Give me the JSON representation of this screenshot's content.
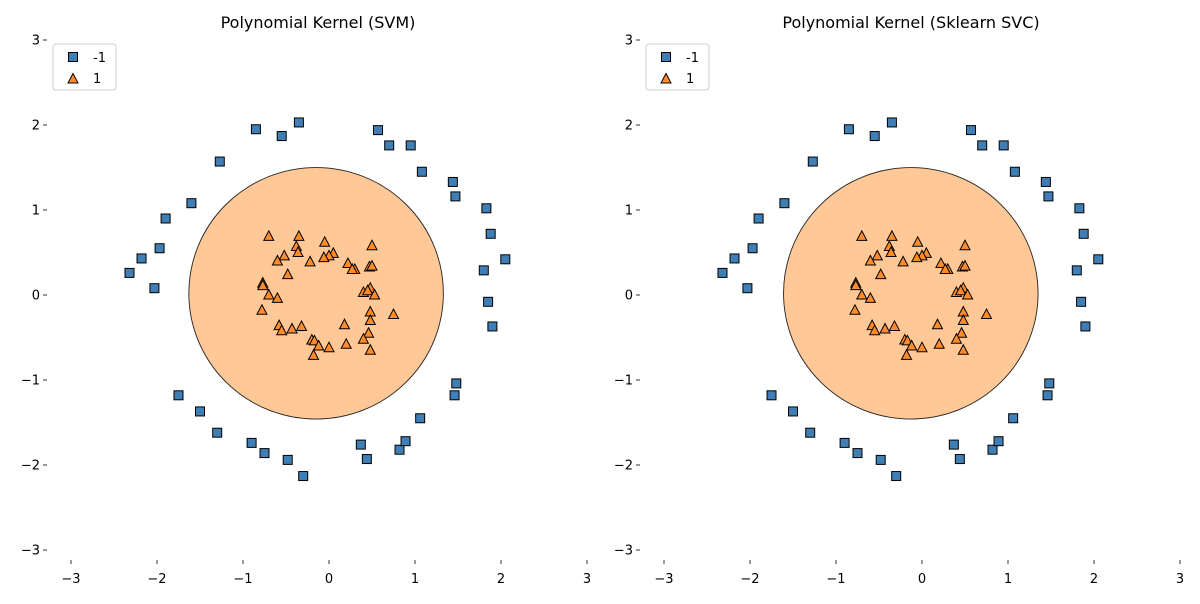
{
  "colors": {
    "class_neg": "#3f7fb5",
    "class_pos": "#ff8c2b",
    "region_pos": "#ffc896",
    "marker_edge": "#000000",
    "legend_border": "#cccccc"
  },
  "legend": {
    "entries": [
      {
        "label": "-1",
        "marker": "square"
      },
      {
        "label": "1",
        "marker": "triangle"
      }
    ],
    "location": "upper-left"
  },
  "chart_data": [
    {
      "type": "scatter",
      "title": "Polynomial Kernel (SVM)",
      "xlim": [
        -3,
        3
      ],
      "ylim": [
        -3,
        3
      ],
      "xticks": [
        "−3",
        "−2",
        "−1",
        "0",
        "1",
        "2",
        "3"
      ],
      "yticks": [
        "−3",
        "−2",
        "−1",
        "0",
        "1",
        "2",
        "3"
      ],
      "grid": false,
      "decision_region": {
        "class": "1",
        "center": [
          -0.15,
          0.02
        ],
        "rx": 1.48,
        "ry_top": 1.48,
        "ry_bottom": 1.48
      },
      "series": [
        {
          "name": "-1",
          "marker": "square",
          "points": [
            [
              -0.85,
              1.95
            ],
            [
              -0.55,
              1.87
            ],
            [
              -0.35,
              2.03
            ],
            [
              0.57,
              1.94
            ],
            [
              0.7,
              1.76
            ],
            [
              0.95,
              1.76
            ],
            [
              1.08,
              1.45
            ],
            [
              1.44,
              1.33
            ],
            [
              1.47,
              1.16
            ],
            [
              -1.27,
              1.57
            ],
            [
              -1.6,
              1.08
            ],
            [
              -1.9,
              0.9
            ],
            [
              -1.97,
              0.55
            ],
            [
              -2.18,
              0.43
            ],
            [
              -2.32,
              0.26
            ],
            [
              -2.03,
              0.08
            ],
            [
              1.83,
              1.02
            ],
            [
              1.88,
              0.72
            ],
            [
              2.05,
              0.42
            ],
            [
              1.8,
              0.29
            ],
            [
              1.85,
              -0.08
            ],
            [
              1.9,
              -0.37
            ],
            [
              -1.75,
              -1.18
            ],
            [
              -1.5,
              -1.37
            ],
            [
              -1.3,
              -1.62
            ],
            [
              -0.9,
              -1.74
            ],
            [
              -0.75,
              -1.86
            ],
            [
              -0.48,
              -1.94
            ],
            [
              -0.3,
              -2.13
            ],
            [
              0.37,
              -1.76
            ],
            [
              0.44,
              -1.93
            ],
            [
              0.82,
              -1.82
            ],
            [
              0.89,
              -1.72
            ],
            [
              1.06,
              -1.45
            ],
            [
              1.46,
              -1.18
            ],
            [
              1.48,
              -1.04
            ]
          ]
        },
        {
          "name": "1",
          "marker": "triangle",
          "points": [
            [
              -0.7,
              0.69
            ],
            [
              -0.35,
              0.69
            ],
            [
              -0.05,
              0.62
            ],
            [
              -0.38,
              0.57
            ],
            [
              -0.36,
              0.5
            ],
            [
              0.05,
              0.49
            ],
            [
              -0.52,
              0.46
            ],
            [
              0.0,
              0.46
            ],
            [
              -0.06,
              0.44
            ],
            [
              -0.6,
              0.4
            ],
            [
              -0.22,
              0.39
            ],
            [
              0.5,
              0.58
            ],
            [
              0.22,
              0.37
            ],
            [
              0.3,
              0.3
            ],
            [
              0.27,
              0.3
            ],
            [
              0.47,
              0.33
            ],
            [
              0.5,
              0.34
            ],
            [
              -0.48,
              0.24
            ],
            [
              -0.77,
              0.14
            ],
            [
              -0.77,
              0.11
            ],
            [
              0.4,
              0.03
            ],
            [
              0.48,
              0.08
            ],
            [
              0.45,
              0.05
            ],
            [
              0.53,
              0.0
            ],
            [
              -0.7,
              0.0
            ],
            [
              -0.6,
              -0.04
            ],
            [
              -0.78,
              -0.18
            ],
            [
              0.48,
              -0.2
            ],
            [
              0.75,
              -0.23
            ],
            [
              0.48,
              -0.3
            ],
            [
              0.18,
              -0.35
            ],
            [
              -0.58,
              -0.36
            ],
            [
              -0.32,
              -0.37
            ],
            [
              -0.43,
              -0.4
            ],
            [
              -0.55,
              -0.42
            ],
            [
              0.46,
              -0.45
            ],
            [
              -0.2,
              -0.53
            ],
            [
              -0.17,
              -0.54
            ],
            [
              0.4,
              -0.52
            ],
            [
              0.2,
              -0.58
            ],
            [
              -0.12,
              -0.6
            ],
            [
              0.0,
              -0.62
            ],
            [
              0.48,
              -0.65
            ],
            [
              -0.18,
              -0.71
            ]
          ]
        }
      ]
    },
    {
      "type": "scatter",
      "title": "Polynomial Kernel (Sklearn SVC)",
      "xlim": [
        -3,
        3
      ],
      "ylim": [
        -3,
        3
      ],
      "xticks": [
        "−3",
        "−2",
        "−1",
        "0",
        "1",
        "2",
        "3"
      ],
      "yticks": [
        "−3",
        "−2",
        "−1",
        "0",
        "1",
        "2",
        "3"
      ],
      "grid": false,
      "decision_region": {
        "class": "1",
        "center": [
          -0.13,
          0.02
        ],
        "rx": 1.48,
        "ry_top": 1.48,
        "ry_bottom": 1.48
      },
      "series": [
        {
          "name": "-1",
          "marker": "square",
          "points": [
            [
              -0.85,
              1.95
            ],
            [
              -0.55,
              1.87
            ],
            [
              -0.35,
              2.03
            ],
            [
              0.57,
              1.94
            ],
            [
              0.7,
              1.76
            ],
            [
              0.95,
              1.76
            ],
            [
              1.08,
              1.45
            ],
            [
              1.44,
              1.33
            ],
            [
              1.47,
              1.16
            ],
            [
              -1.27,
              1.57
            ],
            [
              -1.6,
              1.08
            ],
            [
              -1.9,
              0.9
            ],
            [
              -1.97,
              0.55
            ],
            [
              -2.18,
              0.43
            ],
            [
              -2.32,
              0.26
            ],
            [
              -2.03,
              0.08
            ],
            [
              1.83,
              1.02
            ],
            [
              1.88,
              0.72
            ],
            [
              2.05,
              0.42
            ],
            [
              1.8,
              0.29
            ],
            [
              1.85,
              -0.08
            ],
            [
              1.9,
              -0.37
            ],
            [
              -1.75,
              -1.18
            ],
            [
              -1.5,
              -1.37
            ],
            [
              -1.3,
              -1.62
            ],
            [
              -0.9,
              -1.74
            ],
            [
              -0.75,
              -1.86
            ],
            [
              -0.48,
              -1.94
            ],
            [
              -0.3,
              -2.13
            ],
            [
              0.37,
              -1.76
            ],
            [
              0.44,
              -1.93
            ],
            [
              0.82,
              -1.82
            ],
            [
              0.89,
              -1.72
            ],
            [
              1.06,
              -1.45
            ],
            [
              1.46,
              -1.18
            ],
            [
              1.48,
              -1.04
            ]
          ]
        },
        {
          "name": "1",
          "marker": "triangle",
          "points": [
            [
              -0.7,
              0.69
            ],
            [
              -0.35,
              0.69
            ],
            [
              -0.05,
              0.62
            ],
            [
              -0.38,
              0.57
            ],
            [
              -0.36,
              0.5
            ],
            [
              0.05,
              0.49
            ],
            [
              -0.52,
              0.46
            ],
            [
              0.0,
              0.46
            ],
            [
              -0.06,
              0.44
            ],
            [
              -0.6,
              0.4
            ],
            [
              -0.22,
              0.39
            ],
            [
              0.5,
              0.58
            ],
            [
              0.22,
              0.37
            ],
            [
              0.3,
              0.3
            ],
            [
              0.27,
              0.3
            ],
            [
              0.47,
              0.33
            ],
            [
              0.5,
              0.34
            ],
            [
              -0.48,
              0.24
            ],
            [
              -0.77,
              0.14
            ],
            [
              -0.77,
              0.11
            ],
            [
              0.4,
              0.03
            ],
            [
              0.48,
              0.08
            ],
            [
              0.45,
              0.05
            ],
            [
              0.53,
              0.0
            ],
            [
              -0.7,
              0.0
            ],
            [
              -0.6,
              -0.04
            ],
            [
              -0.78,
              -0.18
            ],
            [
              0.48,
              -0.2
            ],
            [
              0.75,
              -0.23
            ],
            [
              0.48,
              -0.3
            ],
            [
              0.18,
              -0.35
            ],
            [
              -0.58,
              -0.36
            ],
            [
              -0.32,
              -0.37
            ],
            [
              -0.43,
              -0.4
            ],
            [
              -0.55,
              -0.42
            ],
            [
              0.46,
              -0.45
            ],
            [
              -0.2,
              -0.53
            ],
            [
              -0.17,
              -0.54
            ],
            [
              0.4,
              -0.52
            ],
            [
              0.2,
              -0.58
            ],
            [
              -0.12,
              -0.6
            ],
            [
              0.0,
              -0.62
            ],
            [
              0.48,
              -0.65
            ],
            [
              -0.18,
              -0.71
            ]
          ]
        }
      ]
    }
  ]
}
